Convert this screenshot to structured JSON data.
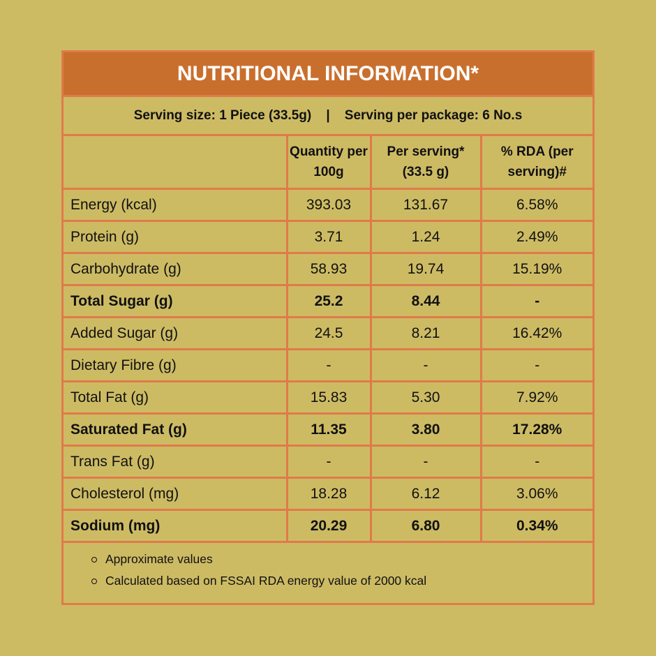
{
  "title": "NUTRITIONAL INFORMATION*",
  "serving": "Serving size: 1 Piece (33.5g)    |    Serving per package: 6 No.s",
  "headers": [
    "",
    "Quantity per 100g",
    "Per serving* (33.5 g)",
    "% RDA (per serving)#"
  ],
  "rows": [
    {
      "name": "Energy (kcal)",
      "q": "393.03",
      "ps": "131.67",
      "rda": "6.58%",
      "bold": false
    },
    {
      "name": "Protein (g)",
      "q": "3.71",
      "ps": "1.24",
      "rda": "2.49%",
      "bold": false
    },
    {
      "name": "Carbohydrate (g)",
      "q": "58.93",
      "ps": "19.74",
      "rda": "15.19%",
      "bold": false
    },
    {
      "name": "Total Sugar (g)",
      "q": "25.2",
      "ps": "8.44",
      "rda": "-",
      "bold": true
    },
    {
      "name": "Added Sugar (g)",
      "q": "24.5",
      "ps": "8.21",
      "rda": "16.42%",
      "bold": false
    },
    {
      "name": "Dietary Fibre (g)",
      "q": "-",
      "ps": "-",
      "rda": "-",
      "bold": false
    },
    {
      "name": "Total Fat (g)",
      "q": "15.83",
      "ps": "5.30",
      "rda": "7.92%",
      "bold": false
    },
    {
      "name": "Saturated Fat (g)",
      "q": "11.35",
      "ps": "3.80",
      "rda": "17.28%",
      "bold": true
    },
    {
      "name": "Trans Fat (g)",
      "q": "-",
      "ps": "-",
      "rda": "-",
      "bold": false
    },
    {
      "name": "Cholesterol (mg)",
      "q": "18.28",
      "ps": "6.12",
      "rda": "3.06%",
      "bold": false
    },
    {
      "name": "Sodium (mg)",
      "q": "20.29",
      "ps": "6.80",
      "rda": "0.34%",
      "bold": true
    }
  ],
  "notes": [
    "Approximate values",
    "Calculated based on FSSAI RDA energy value of 2000 kcal"
  ]
}
